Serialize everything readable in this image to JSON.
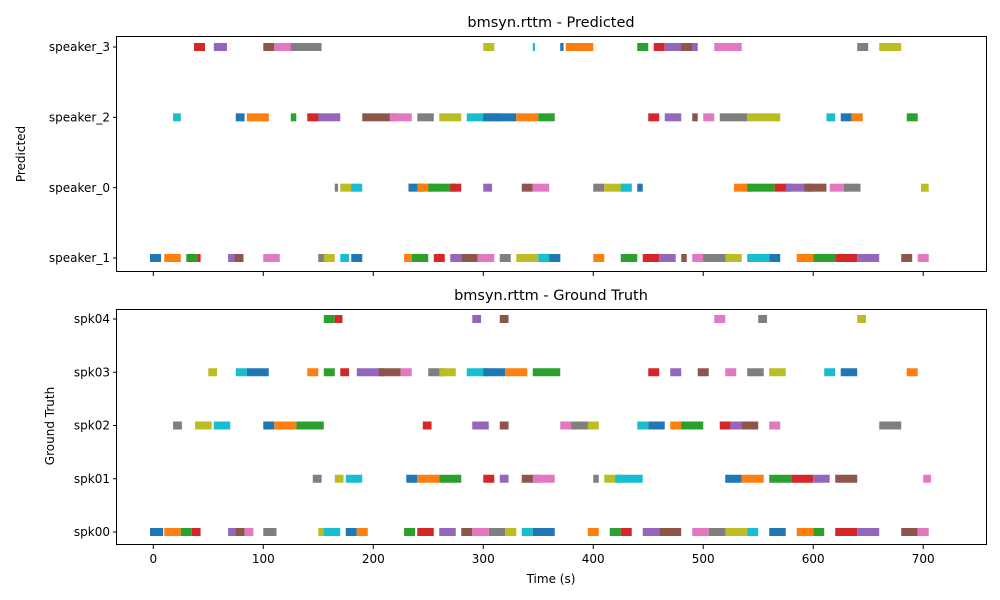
{
  "colors": [
    "#1f77b4",
    "#ff7f0e",
    "#2ca02c",
    "#d62728",
    "#9467bd",
    "#8c564b",
    "#e377c2",
    "#7f7f7f",
    "#bcbd22",
    "#17becf"
  ],
  "chart_data": [
    {
      "type": "timeline",
      "title": "bmsyn.rttm - Predicted",
      "xlabel": "",
      "ylabel": "Predicted",
      "xlim": [
        -33,
        758
      ],
      "xticks": [
        0,
        100,
        200,
        300,
        400,
        500,
        600,
        700
      ],
      "x_tick_labels_visible": false,
      "grid": false,
      "lanes": [
        "speaker_1",
        "speaker_0",
        "speaker_2",
        "speaker_3"
      ],
      "segments": {
        "speaker_3": [
          [
            37,
            10
          ],
          [
            55,
            12
          ],
          [
            100,
            10
          ],
          [
            110,
            30
          ],
          [
            125,
            28
          ],
          [
            300,
            10
          ],
          [
            345,
            2
          ],
          [
            370,
            3
          ],
          [
            375,
            25
          ],
          [
            440,
            10
          ],
          [
            455,
            10
          ],
          [
            465,
            30
          ],
          [
            480,
            10
          ],
          [
            510,
            25
          ],
          [
            640,
            10
          ],
          [
            660,
            20
          ]
        ],
        "speaker_2": [
          [
            18,
            7
          ],
          [
            75,
            8
          ],
          [
            85,
            20
          ],
          [
            125,
            5
          ],
          [
            140,
            12
          ],
          [
            150,
            20
          ],
          [
            190,
            30
          ],
          [
            215,
            20
          ],
          [
            240,
            15
          ],
          [
            260,
            20
          ],
          [
            285,
            30
          ],
          [
            300,
            30
          ],
          [
            330,
            20
          ],
          [
            350,
            15
          ],
          [
            450,
            10
          ],
          [
            465,
            15
          ],
          [
            490,
            5
          ],
          [
            500,
            10
          ],
          [
            515,
            25
          ],
          [
            540,
            30
          ],
          [
            612,
            8
          ],
          [
            625,
            10
          ],
          [
            635,
            10
          ],
          [
            685,
            10
          ]
        ],
        "speaker_0": [
          [
            165,
            3
          ],
          [
            170,
            15
          ],
          [
            180,
            10
          ],
          [
            232,
            15
          ],
          [
            240,
            15
          ],
          [
            250,
            25
          ],
          [
            270,
            10
          ],
          [
            300,
            8
          ],
          [
            335,
            10
          ],
          [
            345,
            15
          ],
          [
            400,
            10
          ],
          [
            410,
            25
          ],
          [
            425,
            10
          ],
          [
            440,
            5
          ],
          [
            528,
            15
          ],
          [
            540,
            25
          ],
          [
            565,
            15
          ],
          [
            575,
            25
          ],
          [
            592,
            20
          ],
          [
            615,
            15
          ],
          [
            628,
            15
          ],
          [
            698,
            7
          ]
        ],
        "speaker_1": [
          [
            -3,
            10
          ],
          [
            10,
            15
          ],
          [
            30,
            10
          ],
          [
            40,
            3
          ],
          [
            68,
            8
          ],
          [
            74,
            8
          ],
          [
            100,
            15
          ],
          [
            150,
            8
          ],
          [
            155,
            10
          ],
          [
            170,
            8
          ],
          [
            180,
            10
          ],
          [
            228,
            7
          ],
          [
            235,
            15
          ],
          [
            255,
            10
          ],
          [
            270,
            10
          ],
          [
            280,
            15
          ],
          [
            295,
            15
          ],
          [
            315,
            10
          ],
          [
            330,
            20
          ],
          [
            350,
            20
          ],
          [
            360,
            10
          ],
          [
            400,
            10
          ],
          [
            425,
            15
          ],
          [
            445,
            15
          ],
          [
            460,
            15
          ],
          [
            480,
            5
          ],
          [
            490,
            15
          ],
          [
            500,
            25
          ],
          [
            520,
            15
          ],
          [
            540,
            20
          ],
          [
            560,
            10
          ],
          [
            585,
            15
          ],
          [
            600,
            20
          ],
          [
            620,
            20
          ],
          [
            640,
            20
          ],
          [
            680,
            10
          ],
          [
            695,
            10
          ]
        ]
      }
    },
    {
      "type": "timeline",
      "title": "bmsyn.rttm - Ground Truth",
      "xlabel": "Time (s)",
      "ylabel": "Ground Truth",
      "xlim": [
        -33,
        758
      ],
      "xticks": [
        0,
        100,
        200,
        300,
        400,
        500,
        600,
        700
      ],
      "x_tick_labels_visible": true,
      "grid": false,
      "lanes": [
        "spk00",
        "spk01",
        "spk02",
        "spk03",
        "spk04"
      ],
      "segments": {
        "spk04": [
          [
            155,
            10
          ],
          [
            165,
            7
          ],
          [
            290,
            8
          ],
          [
            315,
            8
          ],
          [
            510,
            10
          ],
          [
            550,
            8
          ],
          [
            640,
            8
          ]
        ],
        "spk03": [
          [
            50,
            8
          ],
          [
            75,
            10
          ],
          [
            85,
            20
          ],
          [
            140,
            10
          ],
          [
            155,
            10
          ],
          [
            170,
            8
          ],
          [
            185,
            25
          ],
          [
            205,
            20
          ],
          [
            225,
            10
          ],
          [
            250,
            15
          ],
          [
            260,
            15
          ],
          [
            285,
            20
          ],
          [
            300,
            20
          ],
          [
            320,
            20
          ],
          [
            345,
            25
          ],
          [
            450,
            10
          ],
          [
            470,
            10
          ],
          [
            495,
            10
          ],
          [
            520,
            10
          ],
          [
            540,
            15
          ],
          [
            560,
            15
          ],
          [
            610,
            10
          ],
          [
            625,
            15
          ],
          [
            685,
            10
          ]
        ],
        "spk02": [
          [
            18,
            8
          ],
          [
            38,
            15
          ],
          [
            55,
            15
          ],
          [
            100,
            10
          ],
          [
            110,
            20
          ],
          [
            130,
            25
          ],
          [
            245,
            8
          ],
          [
            290,
            15
          ],
          [
            315,
            8
          ],
          [
            370,
            15
          ],
          [
            380,
            20
          ],
          [
            395,
            10
          ],
          [
            440,
            10
          ],
          [
            450,
            15
          ],
          [
            470,
            15
          ],
          [
            480,
            20
          ],
          [
            515,
            10
          ],
          [
            525,
            15
          ],
          [
            535,
            15
          ],
          [
            560,
            10
          ],
          [
            660,
            20
          ]
        ],
        "spk01": [
          [
            145,
            8
          ],
          [
            165,
            8
          ],
          [
            175,
            15
          ],
          [
            230,
            10
          ],
          [
            240,
            20
          ],
          [
            260,
            20
          ],
          [
            300,
            10
          ],
          [
            315,
            8
          ],
          [
            335,
            15
          ],
          [
            345,
            20
          ],
          [
            400,
            5
          ],
          [
            410,
            15
          ],
          [
            420,
            25
          ],
          [
            520,
            15
          ],
          [
            535,
            20
          ],
          [
            560,
            20
          ],
          [
            580,
            20
          ],
          [
            600,
            15
          ],
          [
            620,
            20
          ],
          [
            700,
            7
          ]
        ],
        "spk00": [
          [
            -3,
            12
          ],
          [
            10,
            15
          ],
          [
            25,
            10
          ],
          [
            35,
            8
          ],
          [
            68,
            8
          ],
          [
            75,
            8
          ],
          [
            83,
            8
          ],
          [
            100,
            12
          ],
          [
            150,
            8
          ],
          [
            155,
            15
          ],
          [
            175,
            10
          ],
          [
            185,
            10
          ],
          [
            228,
            10
          ],
          [
            240,
            15
          ],
          [
            260,
            15
          ],
          [
            280,
            10
          ],
          [
            290,
            15
          ],
          [
            305,
            15
          ],
          [
            320,
            10
          ],
          [
            335,
            10
          ],
          [
            345,
            20
          ],
          [
            395,
            10
          ],
          [
            415,
            10
          ],
          [
            425,
            10
          ],
          [
            445,
            15
          ],
          [
            460,
            20
          ],
          [
            490,
            15
          ],
          [
            505,
            20
          ],
          [
            520,
            20
          ],
          [
            540,
            10
          ],
          [
            560,
            15
          ],
          [
            585,
            15
          ],
          [
            600,
            10
          ],
          [
            620,
            20
          ],
          [
            640,
            20
          ],
          [
            680,
            15
          ],
          [
            695,
            10
          ]
        ]
      }
    }
  ]
}
